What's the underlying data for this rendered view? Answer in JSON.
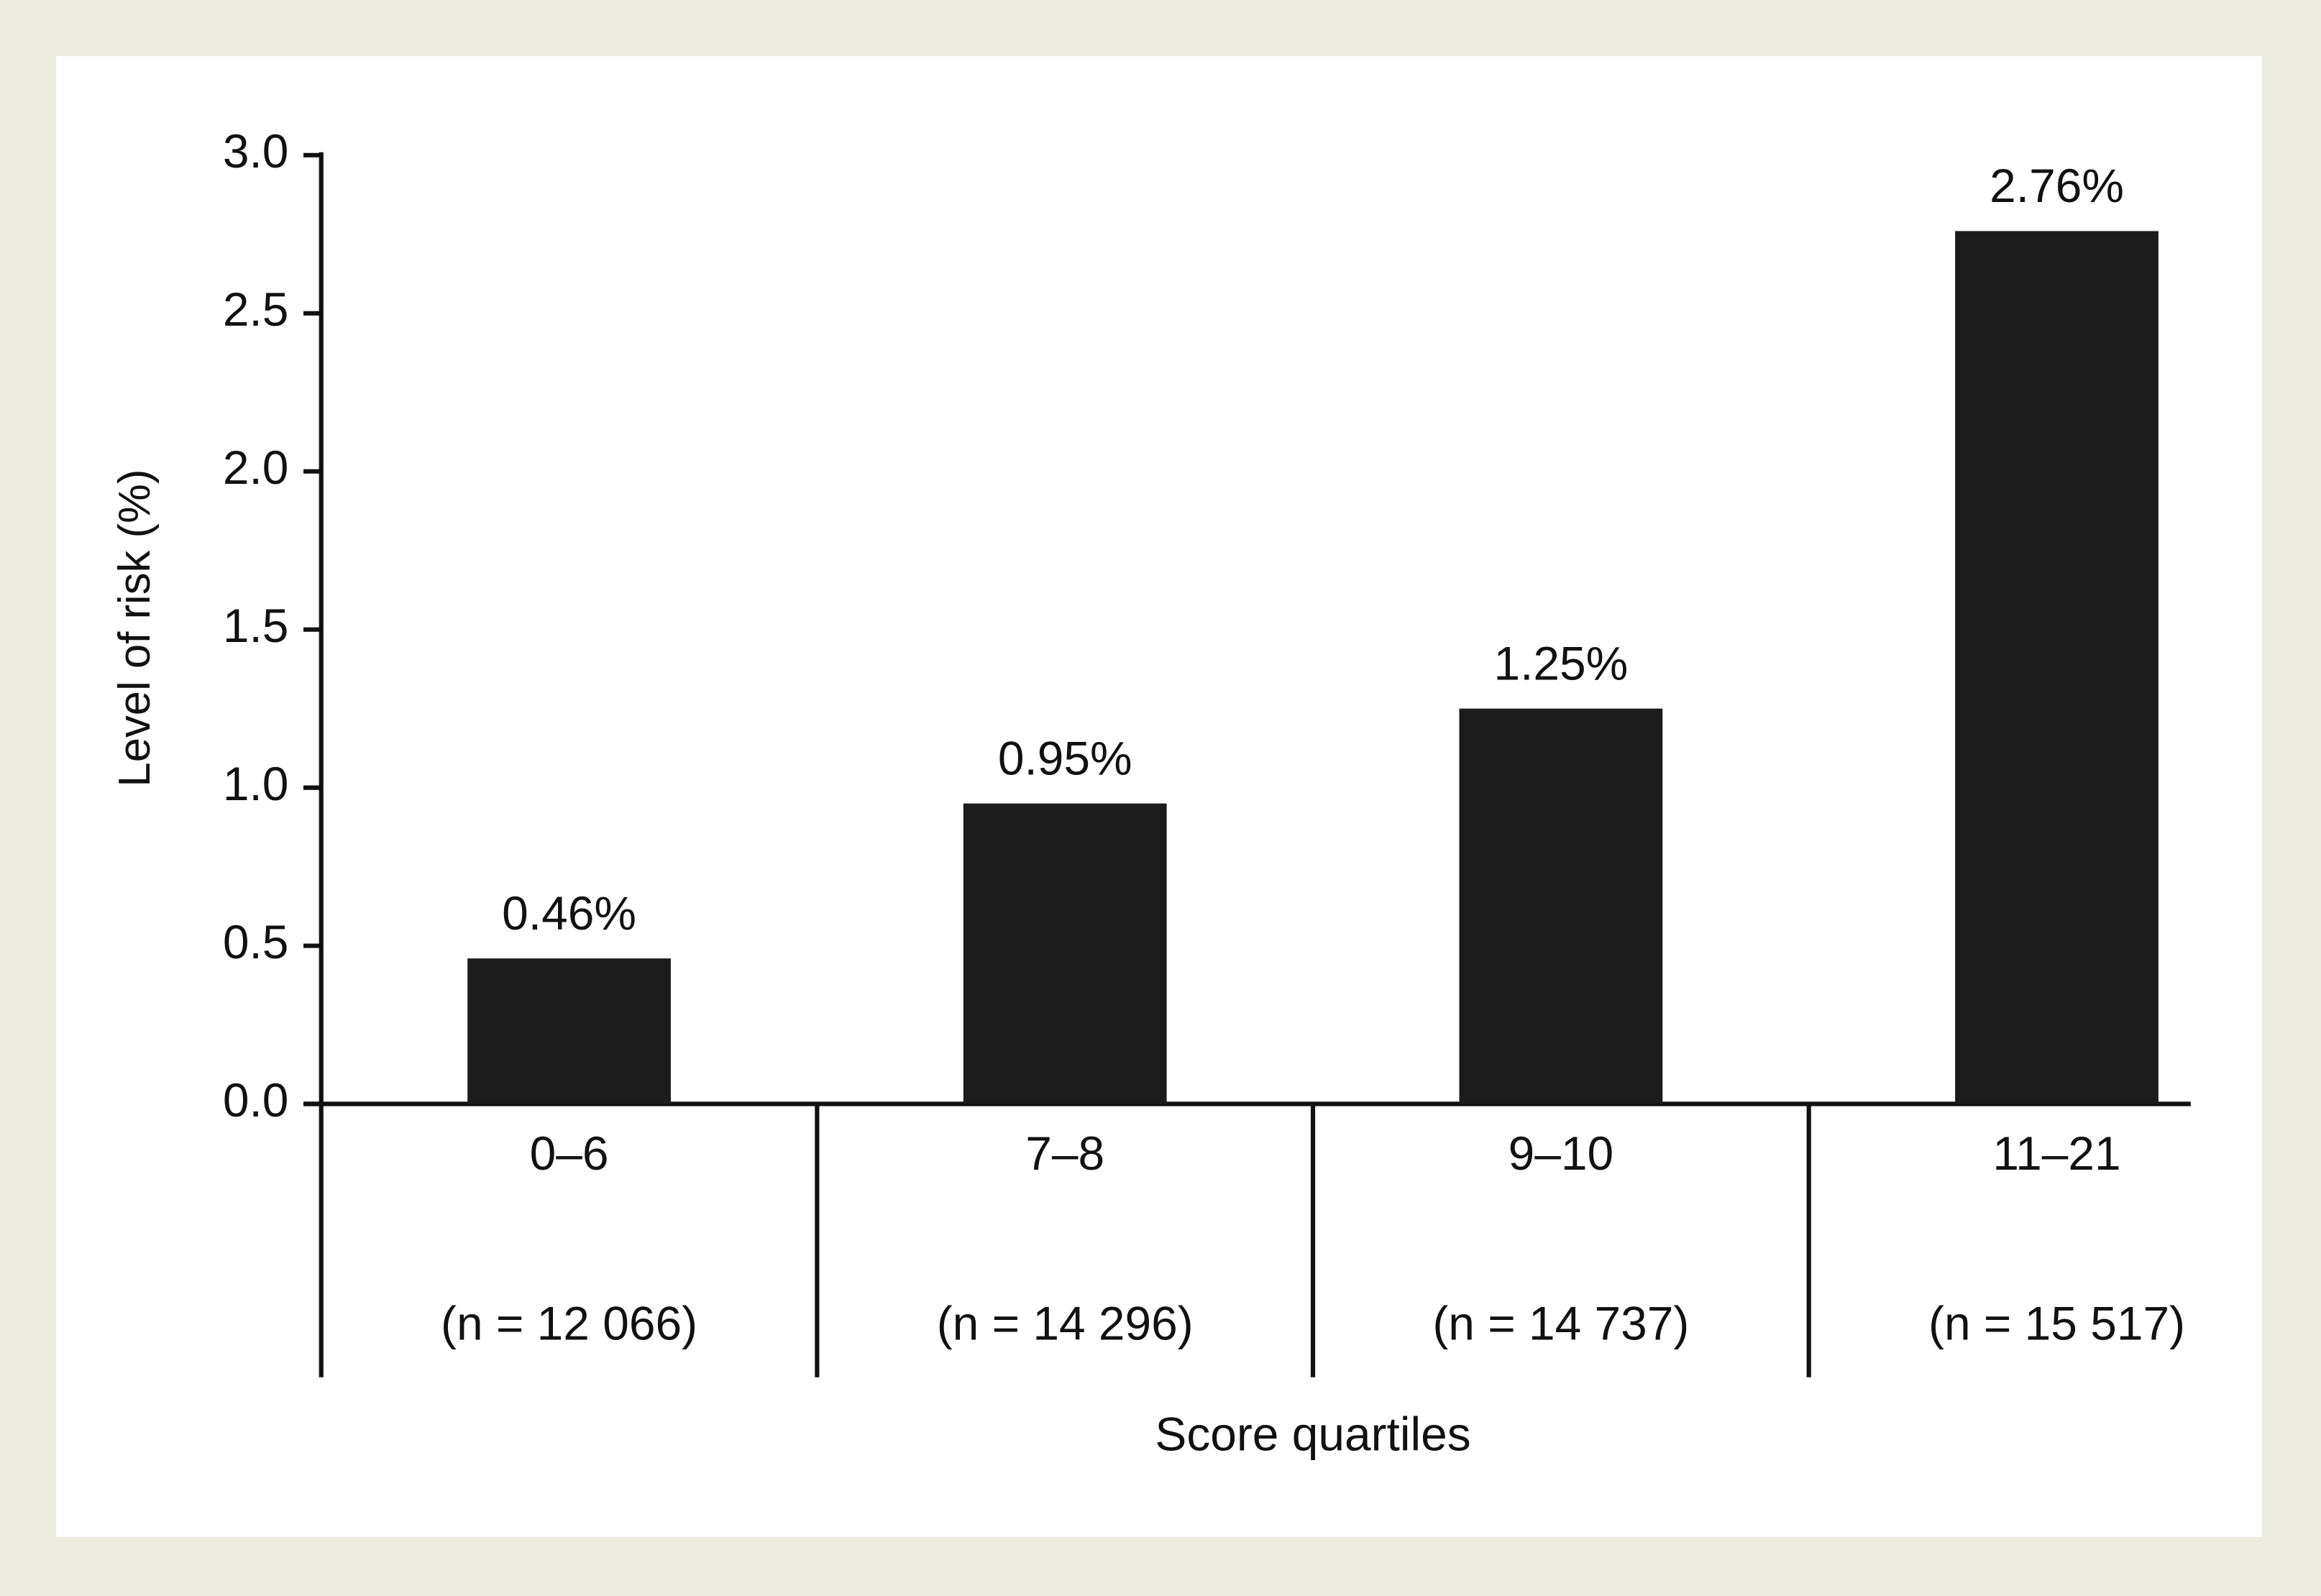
{
  "chart_data": {
    "type": "bar",
    "x_label": "Score quartiles",
    "y_label": "Level of risk (%)",
    "categories": [
      "0–6",
      "7–8",
      "9–10",
      "11–21"
    ],
    "category_counts": [
      "(n = 12 066)",
      "(n = 14 296)",
      "(n = 14 737)",
      "(n = 15 517)"
    ],
    "values": [
      0.46,
      0.95,
      1.25,
      2.76
    ],
    "value_labels": [
      "0.46%",
      "0.95%",
      "1.25%",
      "2.76%"
    ],
    "color": "#1c1c1c",
    "ylim": [
      0,
      3
    ],
    "yticks": [
      {
        "value": 0,
        "label": "0.0"
      },
      0.5,
      {
        "value": 1,
        "label": "1.0"
      },
      1.5,
      {
        "value": 2,
        "label": "2.0"
      },
      2.5,
      {
        "value": 3,
        "label": "3.0"
      }
    ],
    "grid": false
  }
}
